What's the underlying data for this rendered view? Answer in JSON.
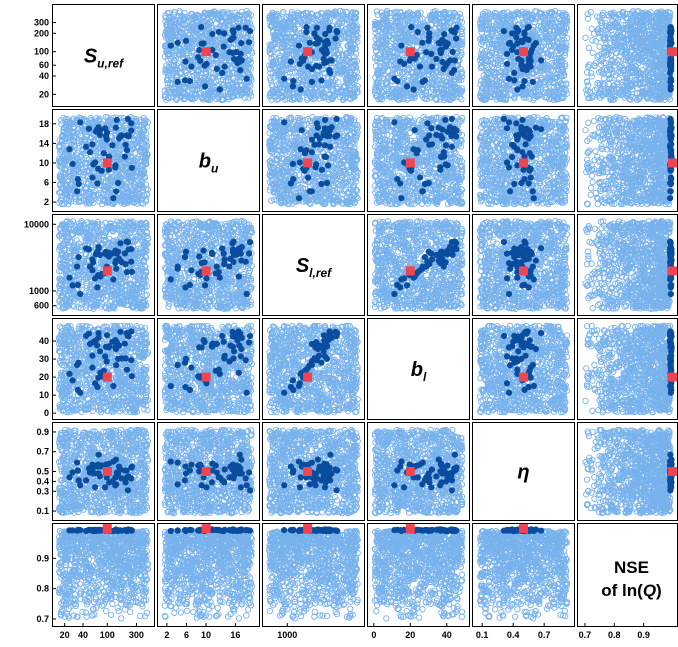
{
  "chart_data": {
    "type": "scatter",
    "layout": "scatterplot-matrix",
    "variables": [
      {
        "key": "S_u_ref",
        "label_main": "S",
        "label_sub": "u,ref",
        "scale": "log",
        "range": [
          15,
          500
        ],
        "ticks": [
          "20",
          "40",
          "60",
          "100",
          "200",
          "300"
        ],
        "yticks": [
          "20",
          "40",
          "60",
          "100",
          "200",
          "300"
        ],
        "xticks": [
          "20",
          "40",
          "100",
          "300"
        ]
      },
      {
        "key": "b_u",
        "label_main": "b",
        "label_sub": "u",
        "scale": "linear",
        "range": [
          1,
          20
        ],
        "yticks": [
          "2",
          "6",
          "10",
          "14",
          "18"
        ],
        "xticks": [
          "2",
          "6",
          "10",
          "16"
        ]
      },
      {
        "key": "S_l_ref",
        "label_main": "S",
        "label_sub": "l,ref",
        "scale": "log",
        "range": [
          500,
          12000
        ],
        "yticks": [
          "600",
          "1000",
          "10000"
        ],
        "xticks": [
          "1000"
        ]
      },
      {
        "key": "b_l",
        "label_main": "b",
        "label_sub": "l",
        "scale": "linear",
        "range": [
          -1,
          50
        ],
        "yticks": [
          "0",
          "10",
          "20",
          "30",
          "40"
        ],
        "xticks": [
          "0",
          "20",
          "40"
        ]
      },
      {
        "key": "eta",
        "label_main": "η",
        "label_sub": "",
        "scale": "linear",
        "range": [
          0.05,
          0.95
        ],
        "yticks": [
          "0.1",
          "0.3",
          "0.4",
          "0.5",
          "0.7",
          "0.9"
        ],
        "xticks": [
          "0.1",
          "0.4",
          "0.7"
        ]
      },
      {
        "key": "NSE",
        "label_main": "NSE",
        "label_line2_pre": "of ln(",
        "label_line2_it": "Q",
        "label_line2_post": ")",
        "scale": "linear",
        "range": [
          0.69,
          1.0
        ],
        "yticks": [
          "0.7",
          "0.8",
          "0.9"
        ],
        "xticks": [
          "0.7",
          "0.8",
          "0.9"
        ]
      }
    ],
    "reference_point": [
      100,
      10,
      2000,
      20,
      0.5,
      0.998
    ],
    "behavioral_points": [
      [
        52,
        12.2,
        2317,
        38.4,
        0.49,
        0.993
      ],
      [
        27,
        9.8,
        1212,
        18.2,
        0.49,
        0.992
      ],
      [
        217,
        19,
        5400,
        42.8,
        0.31,
        0.991
      ],
      [
        207,
        15.6,
        5500,
        44.4,
        0.51,
        0.99
      ],
      [
        107,
        11.2,
        3750,
        37.1,
        0.39,
        0.995
      ],
      [
        150,
        5.9,
        3880,
        30.1,
        0.48,
        0.99
      ],
      [
        253,
        9,
        1930,
        20.5,
        0.55,
        0.992
      ],
      [
        36,
        18.3,
        900,
        11.3,
        0.36,
        0.993
      ],
      [
        121,
        13.6,
        3630,
        39.6,
        0.4,
        0.99
      ],
      [
        57,
        7,
        2040,
        25.3,
        0.57,
        0.993
      ],
      [
        72,
        16.9,
        4370,
        44.4,
        0.67,
        0.991
      ],
      [
        126,
        2.8,
        1490,
        15.1,
        0.6,
        0.99
      ],
      [
        34,
        5.7,
        3220,
        28,
        0.41,
        0.993
      ],
      [
        77,
        16.7,
        1640,
        22.4,
        0.55,
        0.991
      ],
      [
        246,
        18.1,
        2750,
        29.4,
        0.43,
        0.993
      ],
      [
        76,
        15.7,
        3460,
        34.3,
        0.45,
        0.994
      ],
      [
        210,
        12.6,
        1920,
        24.1,
        0.44,
        0.994
      ],
      [
        224,
        15.5,
        4200,
        42.5,
        0.45,
        0.995
      ],
      [
        99,
        16.2,
        3490,
        43.2,
        0.49,
        0.991
      ],
      [
        69,
        5.8,
        1130,
        14.5,
        0.55,
        0.993
      ],
      [
        199,
        13.7,
        2530,
        30.4,
        0.39,
        0.992
      ],
      [
        50,
        17,
        4210,
        44.1,
        0.53,
        0.994
      ],
      [
        45,
        13.3,
        4330,
        42.8,
        0.41,
        0.99
      ],
      [
        63,
        10.1,
        1540,
        16.6,
        0.34,
        0.994
      ],
      [
        98,
        14.8,
        2320,
        28.7,
        0.44,
        0.993
      ],
      [
        59,
        9.7,
        2690,
        39.4,
        0.48,
        0.99
      ],
      [
        138,
        17.2,
        2850,
        35.6,
        0.62,
        0.995
      ],
      [
        164,
        15.4,
        5190,
        45.1,
        0.52,
        0.992
      ],
      [
        135,
        9.1,
        2620,
        36.4,
        0.36,
        0.993
      ],
      [
        140,
        4.2,
        2150,
        26.6,
        0.37,
        0.992
      ],
      [
        136,
        9.5,
        4030,
        40.5,
        0.44,
        0.991
      ],
      [
        81,
        8.4,
        1800,
        20.4,
        0.56,
        0.992
      ],
      [
        106,
        8.6,
        3280,
        36.5,
        0.5,
        0.991
      ],
      [
        143,
        18.8,
        3640,
        39.2,
        0.49,
        0.992
      ],
      [
        32,
        4.2,
        2320,
        26.8,
        0.59,
        0.991
      ],
      [
        71,
        8.8,
        1720,
        19.6,
        0.57,
        0.994
      ],
      [
        33,
        6.7,
        1230,
        12.9,
        0.51,
        0.994
      ],
      [
        72,
        17.3,
        4540,
        41.8,
        0.48,
        0.993
      ],
      [
        247,
        16.6,
        4240,
        45.3,
        0.54,
        0.991
      ],
      [
        92,
        17.1,
        3620,
        31.5,
        0.34,
        0.991
      ],
      [
        24,
        12.8,
        1580,
        21.8,
        0.44,
        0.992
      ],
      [
        194,
        11.3,
        3660,
        38.6,
        0.51,
        0.993
      ],
      [
        68,
        16.8,
        3850,
        37.6,
        0.48,
        0.993
      ],
      [
        171,
        15.6,
        2720,
        30.3,
        0.43,
        0.991
      ],
      [
        95,
        15.5,
        3870,
        36.8,
        0.57,
        0.995
      ],
      [
        88,
        12,
        1830,
        23.5,
        0.56,
        0.994
      ],
      [
        156,
        15,
        3030,
        37.5,
        0.55,
        0.992
      ],
      [
        65,
        16.4,
        3540,
        40.4,
        0.56,
        0.99
      ],
      [
        57,
        13.8,
        2960,
        31.9,
        0.52,
        0.994
      ],
      [
        106,
        11.3,
        3570,
        36.9,
        0.58,
        0.995
      ]
    ],
    "non_behavioral_point_count": 1000,
    "colors": {
      "behavioral": "#0a4d9e",
      "non_behavioral": "#78b2ec",
      "reference": "#f24350"
    }
  }
}
